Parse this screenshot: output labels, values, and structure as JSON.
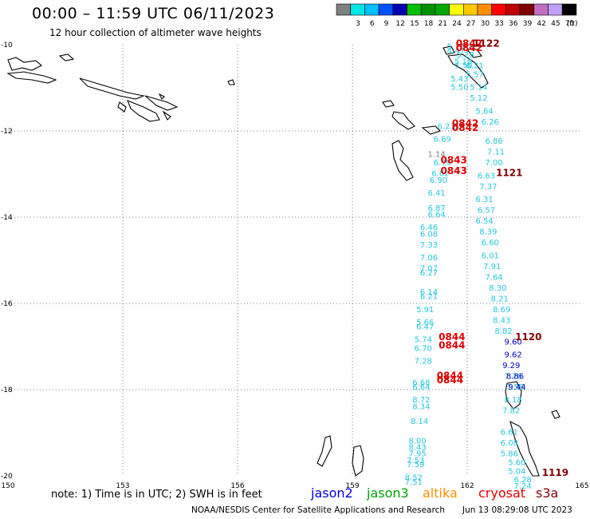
{
  "header": {
    "title": "00:00 – 11:59 UTC 06/11/2023",
    "subtitle": "12 hour collection of altimeter wave heights"
  },
  "legend": {
    "bins": [
      {
        "label": "",
        "color": "#808080"
      },
      {
        "label": "3",
        "color": "#00e5e5"
      },
      {
        "label": "6",
        "color": "#00bfff"
      },
      {
        "label": "9",
        "color": "#0050ff"
      },
      {
        "label": "12",
        "color": "#0000b0"
      },
      {
        "label": "15",
        "color": "#00c000"
      },
      {
        "label": "18",
        "color": "#009000"
      },
      {
        "label": "21",
        "color": "#00a800"
      },
      {
        "label": "24",
        "color": "#ffff00"
      },
      {
        "label": "27",
        "color": "#ffc800"
      },
      {
        "label": "30",
        "color": "#ff9000"
      },
      {
        "label": "33",
        "color": "#ff0000"
      },
      {
        "label": "36",
        "color": "#c00000"
      },
      {
        "label": "39",
        "color": "#800000"
      },
      {
        "label": "42",
        "color": "#c070c0"
      },
      {
        "label": "45",
        "color": "#c0a0ff"
      },
      {
        "label": "70",
        "color": "#000000"
      }
    ],
    "unit": "(ft)"
  },
  "chart_data": {
    "type": "scatter",
    "xlim": [
      150,
      165
    ],
    "ylim": [
      -20,
      -10
    ],
    "x_ticks": [
      "150",
      "153",
      "156",
      "159",
      "162",
      "165"
    ],
    "y_ticks": [
      "-10",
      "-12",
      "-14",
      "-16",
      "-18",
      "-20"
    ],
    "series": [
      {
        "color": "#22c8e0",
        "points": [
          [
            161.7,
            -10.1,
            "5.15"
          ],
          [
            161.7,
            -10.2,
            "4.47"
          ],
          [
            162.0,
            -10.1,
            "5.8"
          ],
          [
            161.95,
            -10.3,
            "5.28"
          ],
          [
            161.9,
            -10.45,
            "5.18"
          ],
          [
            161.9,
            -10.55,
            "5.50"
          ],
          [
            162.2,
            -10.55,
            "6.21"
          ],
          [
            161.8,
            -10.85,
            "5.43"
          ],
          [
            162.2,
            -10.75,
            "5.57"
          ],
          [
            161.8,
            -11.05,
            "5.50"
          ],
          [
            162.3,
            -11.05,
            "5.14"
          ],
          [
            162.3,
            -11.3,
            "5.12"
          ],
          [
            162.45,
            -11.6,
            "5.64"
          ],
          [
            162.6,
            -11.85,
            "6.26"
          ],
          [
            161.45,
            -11.95,
            "6.23"
          ],
          [
            161.85,
            -11.95,
            "6.43"
          ],
          [
            161.35,
            -12.25,
            "6.69"
          ],
          [
            162.7,
            -12.3,
            "6.86"
          ],
          [
            162.75,
            -12.55,
            "7.11"
          ],
          [
            162.7,
            -12.8,
            "7.00"
          ],
          [
            161.35,
            -12.8,
            "6.79"
          ],
          [
            161.3,
            -13.05,
            "6.62"
          ],
          [
            161.25,
            -13.2,
            "6.90"
          ],
          [
            162.5,
            -13.1,
            "6.63"
          ],
          [
            162.55,
            -13.35,
            "7.37"
          ],
          [
            161.2,
            -13.5,
            "6.41"
          ],
          [
            162.45,
            -13.65,
            "6.31"
          ],
          [
            161.2,
            -13.85,
            "6.87"
          ],
          [
            162.5,
            -13.9,
            "6.57"
          ],
          [
            161.2,
            -14.0,
            "6.64"
          ],
          [
            162.45,
            -14.15,
            "6.54"
          ],
          [
            161.0,
            -14.3,
            "6.46"
          ],
          [
            161.0,
            -14.45,
            "6.08"
          ],
          [
            162.55,
            -14.4,
            "8.39"
          ],
          [
            162.6,
            -14.65,
            "6.60"
          ],
          [
            161.0,
            -14.7,
            "7.33"
          ],
          [
            162.6,
            -14.95,
            "6.01"
          ],
          [
            161.0,
            -15.0,
            "7.06"
          ],
          [
            162.65,
            -15.2,
            "7.91"
          ],
          [
            161.0,
            -15.25,
            "7.07"
          ],
          [
            161.0,
            -15.35,
            "6.27"
          ],
          [
            162.7,
            -15.45,
            "7.64"
          ],
          [
            162.8,
            -15.7,
            "8.30"
          ],
          [
            161.0,
            -15.8,
            "6.14"
          ],
          [
            161.0,
            -15.9,
            "6.21"
          ],
          [
            162.85,
            -15.95,
            "8.21"
          ],
          [
            162.9,
            -16.2,
            "8.69"
          ],
          [
            160.9,
            -16.2,
            "5.91"
          ],
          [
            162.9,
            -16.45,
            "8.43"
          ],
          [
            160.9,
            -16.5,
            "5.66"
          ],
          [
            160.9,
            -16.6,
            "6.47"
          ],
          [
            162.95,
            -16.7,
            "8.82"
          ],
          [
            160.85,
            -16.9,
            "5.74"
          ],
          [
            160.85,
            -17.1,
            "6.70"
          ],
          [
            160.85,
            -17.4,
            "7.28"
          ],
          [
            163.2,
            -17.75,
            "7.26"
          ],
          [
            160.8,
            -17.9,
            "6.68"
          ],
          [
            160.8,
            -18.0,
            "6.64"
          ],
          [
            163.25,
            -18.0,
            "7.58"
          ],
          [
            160.8,
            -18.3,
            "8.72"
          ],
          [
            160.8,
            -18.45,
            "8.34"
          ],
          [
            163.2,
            -18.3,
            "8.18"
          ],
          [
            163.15,
            -18.55,
            "7.82"
          ],
          [
            160.75,
            -18.8,
            "8.14"
          ],
          [
            163.1,
            -19.05,
            "6.61"
          ],
          [
            160.7,
            -19.25,
            "8.00"
          ],
          [
            163.1,
            -19.3,
            "6.08"
          ],
          [
            160.7,
            -19.4,
            "8.43"
          ],
          [
            160.7,
            -19.55,
            "7.95"
          ],
          [
            163.1,
            -19.55,
            "5.86"
          ],
          [
            160.65,
            -19.7,
            "7.53"
          ],
          [
            163.3,
            -19.75,
            "5.60"
          ],
          [
            160.65,
            -19.8,
            "7.59"
          ],
          [
            163.3,
            -19.95,
            "5.04"
          ],
          [
            160.6,
            -20.1,
            "8.52"
          ],
          [
            160.6,
            -20.2,
            "7.51"
          ],
          [
            163.45,
            -20.15,
            "6.28"
          ],
          [
            163.45,
            -20.3,
            "7.24"
          ]
        ]
      },
      {
        "color": "#0000c0",
        "points": [
          [
            163.2,
            -16.95,
            "9.60"
          ],
          [
            163.2,
            -17.25,
            "9.62"
          ],
          [
            163.15,
            -17.5,
            "9.29"
          ],
          [
            163.25,
            -17.75,
            "8.86"
          ],
          [
            163.3,
            -18.0,
            "9.44"
          ]
        ]
      },
      {
        "color": "#808080",
        "points": [
          [
            161.2,
            -12.6,
            "1.14"
          ]
        ]
      },
      {
        "color": "#e00000",
        "points": [
          [
            162.05,
            -10.05,
            "0842"
          ],
          [
            162.05,
            -10.15,
            "0842"
          ],
          [
            161.95,
            -11.9,
            "0842"
          ],
          [
            161.95,
            -12.0,
            "0842"
          ],
          [
            161.65,
            -12.75,
            "0843"
          ],
          [
            161.65,
            -13.0,
            "0843"
          ],
          [
            161.6,
            -16.85,
            "0844"
          ],
          [
            161.6,
            -17.05,
            "0844"
          ],
          [
            161.55,
            -17.75,
            "0844"
          ],
          [
            161.55,
            -17.85,
            "0844"
          ]
        ]
      },
      {
        "color": "#800000",
        "points": [
          [
            162.5,
            -10.05,
            "1122"
          ],
          [
            163.1,
            -13.05,
            "1121"
          ],
          [
            163.6,
            -16.85,
            "1120"
          ],
          [
            164.3,
            -20.0,
            "1119"
          ]
        ]
      }
    ]
  },
  "footer": {
    "note": "note:  1) Time is in UTC;  2) SWH is in feet",
    "missions": [
      {
        "label": "jason2",
        "color": "#0000e0"
      },
      {
        "label": "jason3",
        "color": "#00a000"
      },
      {
        "label": "altika",
        "color": "#ff9000"
      },
      {
        "label": "cryosat",
        "color": "#e00000"
      },
      {
        "label": "s3a",
        "color": "#800000"
      }
    ],
    "credit": "NOAA/NESDIS Center for Satellite Applications and Research",
    "timestamp": "Jun 13 08:29:08 UTC 2023"
  }
}
